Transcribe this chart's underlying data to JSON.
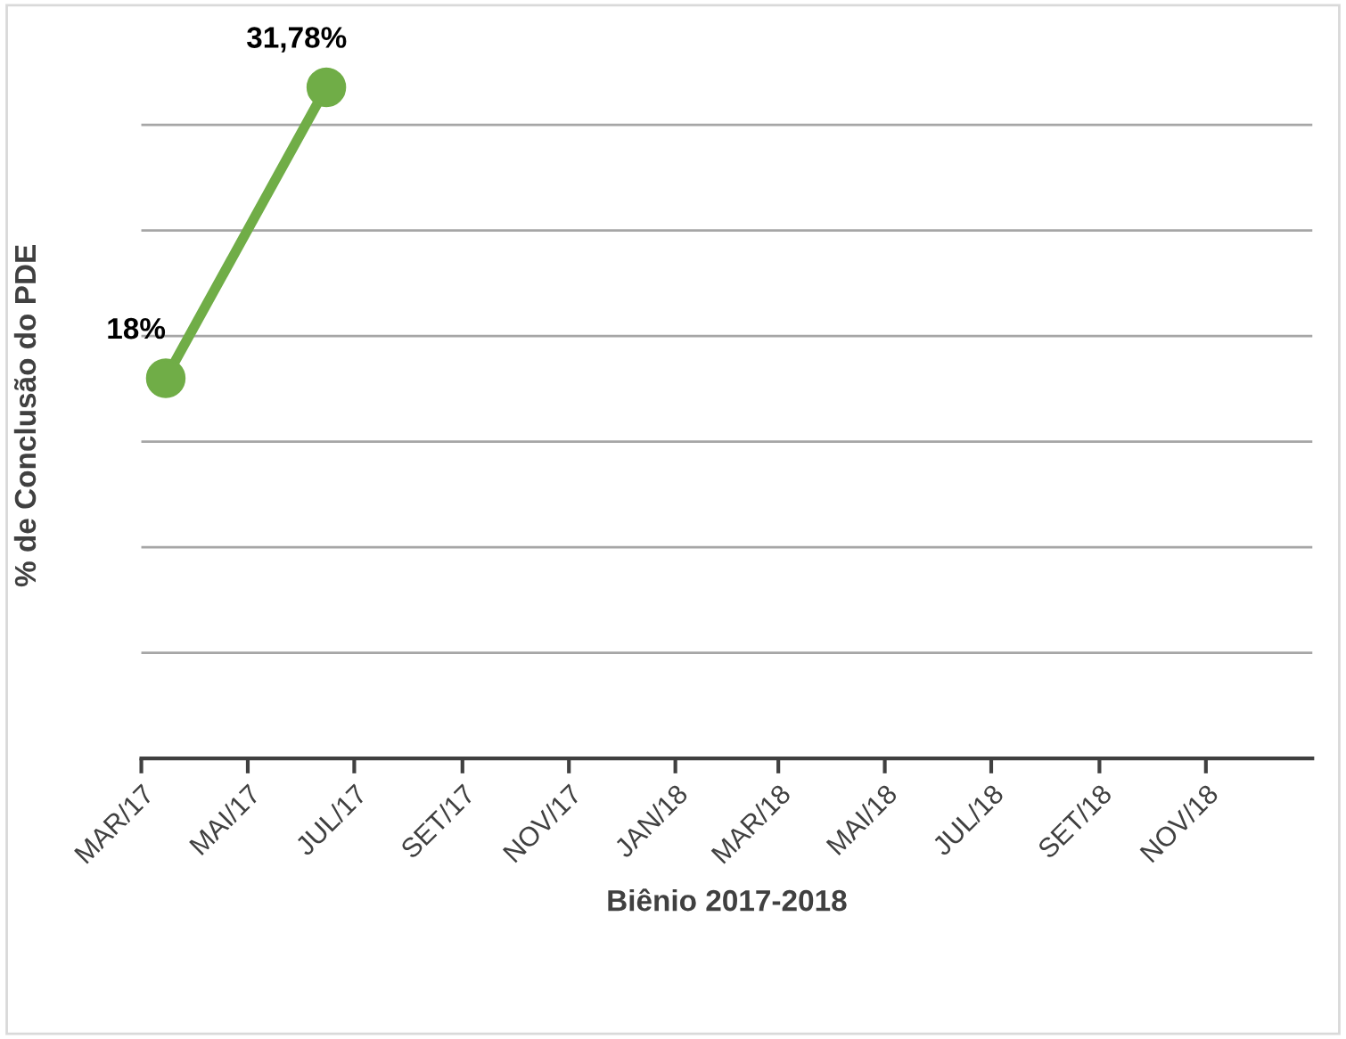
{
  "chart_data": {
    "type": "line",
    "xlabel": "Biênio 2017-2018",
    "ylabel": "% de Conclusão do PDE",
    "x": [
      "2017-03-15",
      "2017-06-15"
    ],
    "series": [
      {
        "color": "#70ad47",
        "values": [
          18,
          31.78
        ],
        "value_labels": [
          "18%",
          "31,78%"
        ]
      }
    ],
    "xlim": [
      "2017-03-01",
      "2019-01-01"
    ],
    "xticks": [
      {
        "value": "2017-03-01",
        "label": "MAR/17"
      },
      {
        "value": "2017-05-01",
        "label": "MAI/17"
      },
      {
        "value": "2017-07-01",
        "label": "JUL/17"
      },
      {
        "value": "2017-09-01",
        "label": "SET/17"
      },
      {
        "value": "2017-11-01",
        "label": "NOV/17"
      },
      {
        "value": "2018-01-01",
        "label": "JAN/18"
      },
      {
        "value": "2018-03-01",
        "label": "MAR/18"
      },
      {
        "value": "2018-05-01",
        "label": "MAI/18"
      },
      {
        "value": "2018-07-01",
        "label": "JUL/18"
      },
      {
        "value": "2018-09-01",
        "label": "SET/18"
      },
      {
        "value": "2018-11-01",
        "label": "NOV/18"
      }
    ],
    "tick_labels": "x",
    "grid": "y",
    "marker": "circle",
    "line_style": "solid",
    "legend": false
  }
}
